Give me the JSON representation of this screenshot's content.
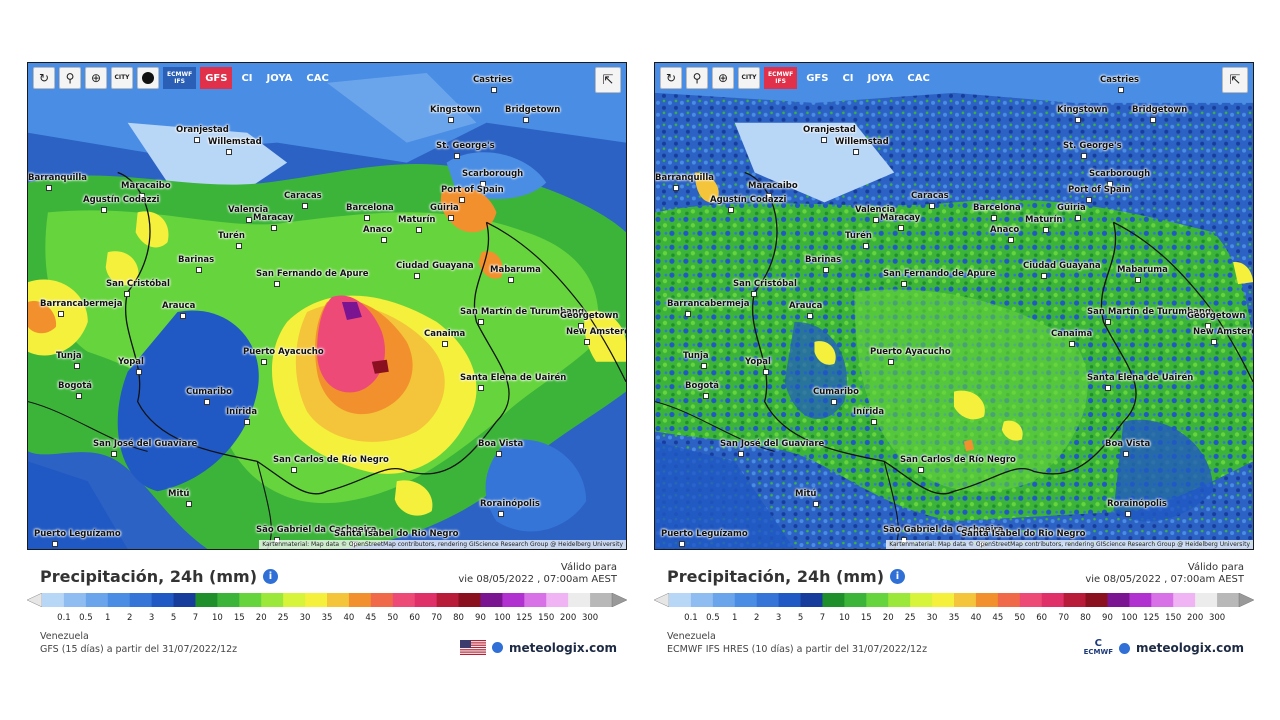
{
  "toolbar_buttons": {
    "refresh_icon": "↻",
    "locate_icon": "⚲",
    "zoom_icon": "⊕",
    "city_label": "CITY",
    "share_icon": "⇱"
  },
  "left": {
    "models": [
      {
        "label": "ECMWF IFS",
        "two_line": true,
        "active": false
      },
      {
        "label": "GFS",
        "two_line": false,
        "active": true
      },
      {
        "label": "CI",
        "two_line": false,
        "active": false
      },
      {
        "label": "JOYA",
        "two_line": false,
        "active": false
      },
      {
        "label": "CAC",
        "two_line": false,
        "active": false
      }
    ],
    "title": "Precipitación, 24h (mm)",
    "valid_line1": "Válido para",
    "valid_line2": "vie 08/05/2022 , 07:00am AEST",
    "region": "Venezuela",
    "source": "GFS (15 días) a partir del 31/07/2022/12z",
    "brand": "meteologix.com"
  },
  "right": {
    "models": [
      {
        "label": "ECMWF IFS",
        "two_line": true,
        "active": true
      },
      {
        "label": "GFS",
        "two_line": false,
        "active": false
      },
      {
        "label": "CI",
        "two_line": false,
        "active": false
      },
      {
        "label": "JOYA",
        "two_line": false,
        "active": false
      },
      {
        "label": "CAC",
        "two_line": false,
        "active": false
      }
    ],
    "title": "Precipitación, 24h (mm)",
    "valid_line1": "Válido para",
    "valid_line2": "vie 08/05/2022 , 07:00am AEST",
    "region": "Venezuela",
    "source": "ECMWF IFS HRES (10 días) a partir del 31/07/2022/12z",
    "brand": "meteologix.com",
    "ecmwf_logo": "ECMWF"
  },
  "attribution": "Kartenmaterial: Map data © OpenStreetMap contributors, rendering GIScience Research Group @ Heidelberg University",
  "cities": [
    {
      "name": "Castries"
    },
    {
      "name": "Kingstown"
    },
    {
      "name": "Bridgetown"
    },
    {
      "name": "Oranjestad"
    },
    {
      "name": "Willemstad"
    },
    {
      "name": "St. George's"
    },
    {
      "name": "Scarborough"
    },
    {
      "name": "Port of Spain"
    },
    {
      "name": "Barranquilla"
    },
    {
      "name": "Maracaibo"
    },
    {
      "name": "Caracas"
    },
    {
      "name": "Valencia"
    },
    {
      "name": "Maracay"
    },
    {
      "name": "Barcelona"
    },
    {
      "name": "Maturín"
    },
    {
      "name": "Güiria"
    },
    {
      "name": "Agustín Codazzi"
    },
    {
      "name": "Anaco"
    },
    {
      "name": "Turén"
    },
    {
      "name": "Barinas"
    },
    {
      "name": "Ciudad Guayana"
    },
    {
      "name": "San Fernando de Apure"
    },
    {
      "name": "Mabaruma"
    },
    {
      "name": "San Cristóbal"
    },
    {
      "name": "Barrancabermeja"
    },
    {
      "name": "Arauca"
    },
    {
      "name": "San Martín de Turumbang"
    },
    {
      "name": "Georgetown"
    },
    {
      "name": "New Amsterdam"
    },
    {
      "name": "Canaima"
    },
    {
      "name": "Tunja"
    },
    {
      "name": "Yopal"
    },
    {
      "name": "Puerto Ayacucho"
    },
    {
      "name": "Bogotá"
    },
    {
      "name": "Cumaribo"
    },
    {
      "name": "Santa Elena de Uairén"
    },
    {
      "name": "Inírida"
    },
    {
      "name": "Boa Vista"
    },
    {
      "name": "San José del Guaviare"
    },
    {
      "name": "San Carlos de Río Negro"
    },
    {
      "name": "Mitú"
    },
    {
      "name": "Rorainópolis"
    },
    {
      "name": "São Gabriel da Cachoeira"
    },
    {
      "name": "Santa Isabel do Rio Negro"
    },
    {
      "name": "Puerto Leguízamo"
    }
  ],
  "scale": {
    "labels": [
      "0.1",
      "0.5",
      "1",
      "2",
      "3",
      "5",
      "7",
      "10",
      "15",
      "20",
      "25",
      "30",
      "35",
      "40",
      "45",
      "50",
      "60",
      "70",
      "80",
      "90",
      "100",
      "125",
      "150",
      "200",
      "300"
    ],
    "colors": [
      "#b8d6f6",
      "#8fbdf1",
      "#6aa5ec",
      "#4a8de4",
      "#3575d8",
      "#2059c4",
      "#173d9c",
      "#1f8f2c",
      "#3cb43a",
      "#66d43d",
      "#9be83a",
      "#d8f43a",
      "#f4f03c",
      "#f4c43a",
      "#f2902e",
      "#f06a4a",
      "#ee4a78",
      "#e0306a",
      "#b81a3a",
      "#8a1020",
      "#7a1490",
      "#b030d0",
      "#d870e8",
      "#f0b4f4",
      "#ececec",
      "#b8b8b8"
    ]
  }
}
